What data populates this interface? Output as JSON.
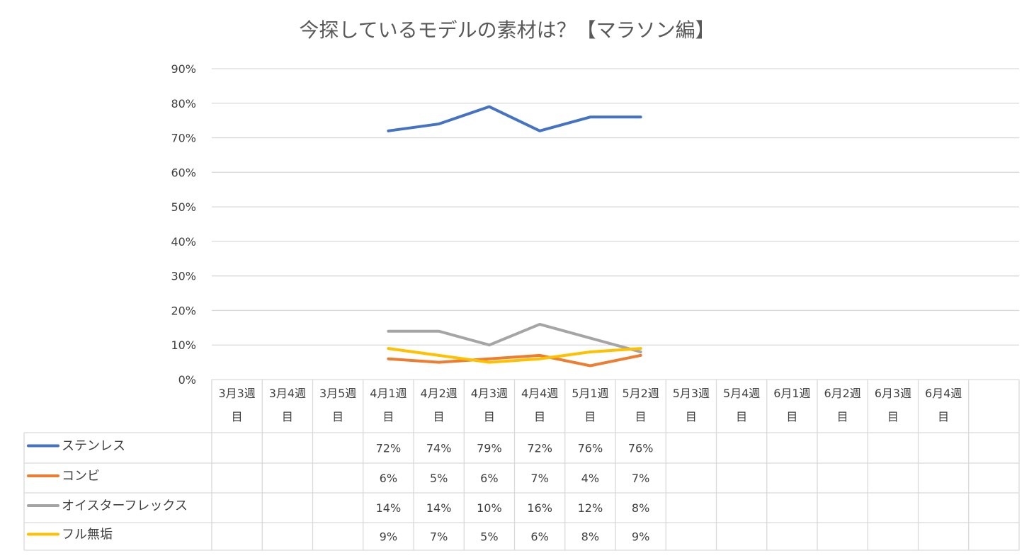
{
  "chart_data": {
    "type": "line",
    "title": "今探しているモデルの素材は？【マラソン編】",
    "categories": [
      [
        "3月3週",
        "目"
      ],
      [
        "3月4週",
        "目"
      ],
      [
        "3月5週",
        "目"
      ],
      [
        "4月1週",
        "目"
      ],
      [
        "4月2週",
        "目"
      ],
      [
        "4月3週",
        "目"
      ],
      [
        "4月4週",
        "目"
      ],
      [
        "5月1週",
        "目"
      ],
      [
        "5月2週",
        "目"
      ],
      [
        "5月3週",
        "目"
      ],
      [
        "5月4週",
        "目"
      ],
      [
        "6月1週",
        "目"
      ],
      [
        "6月2週",
        "目"
      ],
      [
        "6月3週",
        "目"
      ],
      [
        "6月4週",
        "目"
      ],
      [
        "",
        ""
      ]
    ],
    "ylim": [
      0,
      90
    ],
    "yticks": [
      0,
      10,
      20,
      30,
      40,
      50,
      60,
      70,
      80,
      90
    ],
    "ytick_labels": [
      "0%",
      "10%",
      "20%",
      "30%",
      "40%",
      "50%",
      "60%",
      "70%",
      "80%",
      "90%"
    ],
    "grid": true,
    "legend": "data-table",
    "series": [
      {
        "name": "ステンレス",
        "color": "#4472C4",
        "values": [
          null,
          null,
          null,
          72,
          74,
          79,
          72,
          76,
          76,
          null,
          null,
          null,
          null,
          null,
          null,
          null
        ],
        "labels": [
          "",
          "",
          "",
          "72%",
          "74%",
          "79%",
          "72%",
          "76%",
          "76%",
          "",
          "",
          "",
          "",
          "",
          "",
          ""
        ]
      },
      {
        "name": "コンビ",
        "color": "#ED7D31",
        "values": [
          null,
          null,
          null,
          6,
          5,
          6,
          7,
          4,
          7,
          null,
          null,
          null,
          null,
          null,
          null,
          null
        ],
        "labels": [
          "",
          "",
          "",
          "6%",
          "5%",
          "6%",
          "7%",
          "4%",
          "7%",
          "",
          "",
          "",
          "",
          "",
          "",
          ""
        ]
      },
      {
        "name": "オイスターフレックス",
        "color": "#A5A5A5",
        "values": [
          null,
          null,
          null,
          14,
          14,
          10,
          16,
          12,
          8,
          null,
          null,
          null,
          null,
          null,
          null,
          null
        ],
        "labels": [
          "",
          "",
          "",
          "14%",
          "14%",
          "10%",
          "16%",
          "12%",
          "8%",
          "",
          "",
          "",
          "",
          "",
          "",
          ""
        ]
      },
      {
        "name": "フル無垢",
        "color": "#FFC000",
        "values": [
          null,
          null,
          null,
          9,
          7,
          5,
          6,
          8,
          9,
          null,
          null,
          null,
          null,
          null,
          null,
          null
        ],
        "labels": [
          "",
          "",
          "",
          "9%",
          "7%",
          "5%",
          "6%",
          "8%",
          "9%",
          "",
          "",
          "",
          "",
          "",
          "",
          ""
        ]
      }
    ]
  }
}
